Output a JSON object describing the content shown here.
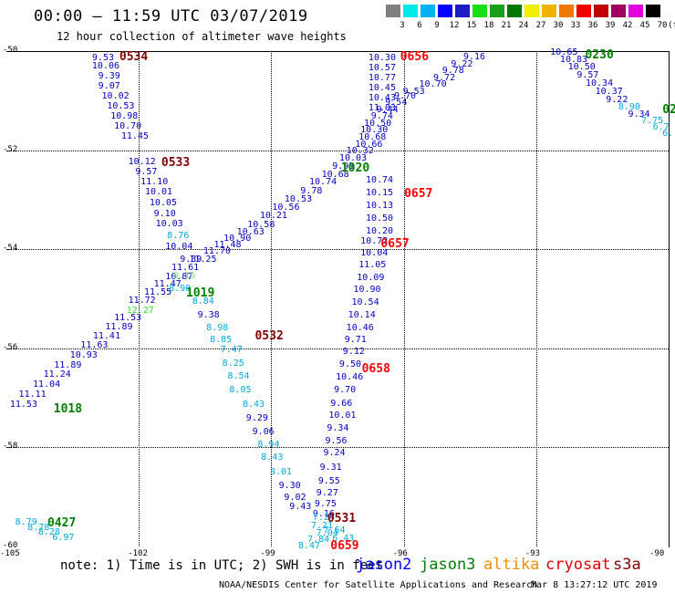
{
  "header": {
    "title": "00:00 – 11:59 UTC 03/07/2019",
    "subtitle": "12 hour collection of altimeter wave heights"
  },
  "legend": {
    "labels": [
      "3",
      "6",
      "9",
      "12",
      "15",
      "18",
      "21",
      "24",
      "27",
      "30",
      "33",
      "36",
      "39",
      "42",
      "45",
      "70"
    ],
    "unit_label": "(ft)",
    "colors": [
      "#808080",
      "#00e8e8",
      "#00b4f0",
      "#0000ff",
      "#1c1cc4",
      "#18e018",
      "#18a018",
      "#007800",
      "#f0f000",
      "#f0b400",
      "#f07800",
      "#f00000",
      "#c00000",
      "#a00060",
      "#e000e0",
      "#000000"
    ]
  },
  "axes": {
    "y_ticks": [
      "-50",
      "-52",
      "-54",
      "-56",
      "-58",
      "-60"
    ],
    "x_ticks": [
      "-105",
      "-102",
      "-99",
      "-96",
      "-93",
      "-90"
    ]
  },
  "footer": {
    "note": "note: 1) Time is in UTC; 2) SWH is in feet",
    "satellites": [
      {
        "name": "jason2",
        "color": "#0000ff"
      },
      {
        "name": "jason3",
        "color": "#008000"
      },
      {
        "name": "altika",
        "color": "#f09000"
      },
      {
        "name": "cryosat",
        "color": "#e00000"
      },
      {
        "name": "s3a",
        "color": "#800000"
      }
    ],
    "credit": "NOAA/NESDIS Center for Satellite Applications and Research",
    "timestamp": "Mar  8 13:27:12 UTC 2019"
  },
  "map_data": {
    "lon_range": [
      -105,
      -90
    ],
    "lat_range": [
      -60,
      -50
    ],
    "sat_colors": {
      "jason2": "#0000c0",
      "jason3": "#008000",
      "cryosat": "#ff0000",
      "s3a": "#800000"
    },
    "time_marks": [
      {
        "label": "0534",
        "sat": "s3a",
        "lon": -102.44,
        "lat": -50.11
      },
      {
        "label": "0533",
        "sat": "s3a",
        "lon": -101.49,
        "lat": -52.25
      },
      {
        "label": "0532",
        "sat": "s3a",
        "lon": -99.37,
        "lat": -55.74
      },
      {
        "label": "0531",
        "sat": "s3a",
        "lon": -97.73,
        "lat": -59.42
      },
      {
        "label": "0656",
        "sat": "cryosat",
        "lon": -96.08,
        "lat": -50.11
      },
      {
        "label": "0657",
        "sat": "cryosat",
        "lon": -95.99,
        "lat": -52.87
      },
      {
        "label": "0657",
        "sat": "cryosat",
        "lon": -96.52,
        "lat": -53.89
      },
      {
        "label": "0658",
        "sat": "cryosat",
        "lon": -96.95,
        "lat": -56.4
      },
      {
        "label": "0659",
        "sat": "cryosat",
        "lon": -97.66,
        "lat": -59.98
      },
      {
        "label": "1019",
        "sat": "jason3",
        "lon": -100.93,
        "lat": -54.88
      },
      {
        "label": "1020",
        "sat": "jason3",
        "lon": -97.42,
        "lat": -52.36
      },
      {
        "label": "1018",
        "sat": "jason3",
        "lon": -103.93,
        "lat": -57.21
      },
      {
        "label": "0427",
        "sat": "jason3",
        "lon": -104.07,
        "lat": -59.53
      },
      {
        "label": "0230",
        "sat": "jason3",
        "lon": -91.89,
        "lat": -50.07
      },
      {
        "label": "02",
        "sat": "jason3",
        "lon": -90.14,
        "lat": -51.17
      }
    ],
    "readings": [
      {
        "v": "9.53",
        "lon": -103.06,
        "lat": -50.15,
        "c": "#0000c0"
      },
      {
        "v": "10.06",
        "lon": -103.06,
        "lat": -50.32,
        "c": "#0000c0"
      },
      {
        "v": "9.39",
        "lon": -102.92,
        "lat": -50.52,
        "c": "#0000c0"
      },
      {
        "v": "9.07",
        "lon": -102.92,
        "lat": -50.72,
        "c": "#0000c0"
      },
      {
        "v": "10.02",
        "lon": -102.84,
        "lat": -50.93,
        "c": "#0000c0"
      },
      {
        "v": "10.53",
        "lon": -102.72,
        "lat": -51.13,
        "c": "#0000c0"
      },
      {
        "v": "10.98",
        "lon": -102.64,
        "lat": -51.33,
        "c": "#0000c0"
      },
      {
        "v": "10.70",
        "lon": -102.56,
        "lat": -51.52,
        "c": "#0000c0"
      },
      {
        "v": "11.45",
        "lon": -102.4,
        "lat": -51.73,
        "c": "#0000c0"
      },
      {
        "v": "10.12",
        "lon": -102.24,
        "lat": -52.25,
        "c": "#0000c0"
      },
      {
        "v": "9.57",
        "lon": -102.08,
        "lat": -52.45,
        "c": "#0000c0"
      },
      {
        "v": "11.10",
        "lon": -101.96,
        "lat": -52.66,
        "c": "#0000c0"
      },
      {
        "v": "10.01",
        "lon": -101.86,
        "lat": -52.86,
        "c": "#0000c0"
      },
      {
        "v": "10.05",
        "lon": -101.76,
        "lat": -53.08,
        "c": "#0000c0"
      },
      {
        "v": "9.10",
        "lon": -101.66,
        "lat": -53.29,
        "c": "#0000c0"
      },
      {
        "v": "10.03",
        "lon": -101.62,
        "lat": -53.49,
        "c": "#0000c0"
      },
      {
        "v": "8.76",
        "lon": -101.36,
        "lat": -53.73,
        "c": "#00a8e0"
      },
      {
        "v": "10.04",
        "lon": -101.4,
        "lat": -53.96,
        "c": "#0000c0"
      },
      {
        "v": "9.39",
        "lon": -101.07,
        "lat": -54.21,
        "c": "#0000c0"
      },
      {
        "v": "8.84",
        "lon": -100.79,
        "lat": -55.07,
        "c": "#00a8e0"
      },
      {
        "v": "9.38",
        "lon": -100.67,
        "lat": -55.34,
        "c": "#0000c0"
      },
      {
        "v": "8.98",
        "lon": -100.47,
        "lat": -55.59,
        "c": "#00a8e0"
      },
      {
        "v": "8.85",
        "lon": -100.39,
        "lat": -55.84,
        "c": "#00a8e0"
      },
      {
        "v": "7.47",
        "lon": -100.15,
        "lat": -56.04,
        "c": "#00a8e0"
      },
      {
        "v": "8.25",
        "lon": -100.11,
        "lat": -56.31,
        "c": "#00a8e0"
      },
      {
        "v": "8.54",
        "lon": -99.99,
        "lat": -56.58,
        "c": "#00a8e0"
      },
      {
        "v": "8.05",
        "lon": -99.95,
        "lat": -56.86,
        "c": "#00a8e0"
      },
      {
        "v": "8.43",
        "lon": -99.65,
        "lat": -57.14,
        "c": "#00a8e0"
      },
      {
        "v": "9.29",
        "lon": -99.57,
        "lat": -57.42,
        "c": "#0000c0"
      },
      {
        "v": "9.06",
        "lon": -99.43,
        "lat": -57.69,
        "c": "#0000c0"
      },
      {
        "v": "8.94",
        "lon": -99.31,
        "lat": -57.95,
        "c": "#00a8e0"
      },
      {
        "v": "8.43",
        "lon": -99.23,
        "lat": -58.21,
        "c": "#00a8e0"
      },
      {
        "v": "8.01",
        "lon": -99.03,
        "lat": -58.5,
        "c": "#00a8e0"
      },
      {
        "v": "9.30",
        "lon": -98.83,
        "lat": -58.79,
        "c": "#0000c0"
      },
      {
        "v": "9.02",
        "lon": -98.71,
        "lat": -59.02,
        "c": "#0000c0"
      },
      {
        "v": "9.43",
        "lon": -98.59,
        "lat": -59.21,
        "c": "#0000c0"
      },
      {
        "v": "10.30",
        "lon": -96.8,
        "lat": -50.15,
        "c": "#0000c0"
      },
      {
        "v": "10.57",
        "lon": -96.8,
        "lat": -50.35,
        "c": "#0000c0"
      },
      {
        "v": "10.77",
        "lon": -96.8,
        "lat": -50.55,
        "c": "#0000c0"
      },
      {
        "v": "10.45",
        "lon": -96.8,
        "lat": -50.75,
        "c": "#0000c0"
      },
      {
        "v": "10.43",
        "lon": -96.8,
        "lat": -50.96,
        "c": "#0000c0"
      },
      {
        "v": "11.03",
        "lon": -96.8,
        "lat": -51.16,
        "c": "#0000c0"
      },
      {
        "v": "10.74",
        "lon": -96.86,
        "lat": -52.61,
        "c": "#0000c0"
      },
      {
        "v": "10.15",
        "lon": -96.86,
        "lat": -52.87,
        "c": "#0000c0"
      },
      {
        "v": "10.13",
        "lon": -96.86,
        "lat": -53.13,
        "c": "#0000c0"
      },
      {
        "v": "10.50",
        "lon": -96.86,
        "lat": -53.38,
        "c": "#0000c0"
      },
      {
        "v": "10.20",
        "lon": -96.86,
        "lat": -53.64,
        "c": "#0000c0"
      },
      {
        "v": "10.72",
        "lon": -96.98,
        "lat": -53.84,
        "c": "#0000c0"
      },
      {
        "v": "10.04",
        "lon": -96.98,
        "lat": -54.08,
        "c": "#0000c0"
      },
      {
        "v": "11.05",
        "lon": -97.02,
        "lat": -54.33,
        "c": "#0000c0"
      },
      {
        "v": "10.09",
        "lon": -97.06,
        "lat": -54.58,
        "c": "#0000c0"
      },
      {
        "v": "10.90",
        "lon": -97.14,
        "lat": -54.83,
        "c": "#0000c0"
      },
      {
        "v": "10.54",
        "lon": -97.18,
        "lat": -55.09,
        "c": "#0000c0"
      },
      {
        "v": "10.14",
        "lon": -97.26,
        "lat": -55.34,
        "c": "#0000c0"
      },
      {
        "v": "10.46",
        "lon": -97.3,
        "lat": -55.59,
        "c": "#0000c0"
      },
      {
        "v": "9.71",
        "lon": -97.34,
        "lat": -55.84,
        "c": "#0000c0"
      },
      {
        "v": "9.12",
        "lon": -97.38,
        "lat": -56.08,
        "c": "#0000c0"
      },
      {
        "v": "9.50",
        "lon": -97.46,
        "lat": -56.34,
        "c": "#0000c0"
      },
      {
        "v": "10.46",
        "lon": -97.54,
        "lat": -56.6,
        "c": "#0000c0"
      },
      {
        "v": "9.70",
        "lon": -97.58,
        "lat": -56.86,
        "c": "#0000c0"
      },
      {
        "v": "9.66",
        "lon": -97.66,
        "lat": -57.12,
        "c": "#0000c0"
      },
      {
        "v": "10.01",
        "lon": -97.7,
        "lat": -57.37,
        "c": "#0000c0"
      },
      {
        "v": "9.34",
        "lon": -97.74,
        "lat": -57.62,
        "c": "#0000c0"
      },
      {
        "v": "9.56",
        "lon": -97.78,
        "lat": -57.88,
        "c": "#0000c0"
      },
      {
        "v": "9.24",
        "lon": -97.82,
        "lat": -58.12,
        "c": "#0000c0"
      },
      {
        "v": "9.31",
        "lon": -97.9,
        "lat": -58.42,
        "c": "#0000c0"
      },
      {
        "v": "9.55",
        "lon": -97.94,
        "lat": -58.69,
        "c": "#0000c0"
      },
      {
        "v": "9.27",
        "lon": -97.98,
        "lat": -58.93,
        "c": "#0000c0"
      },
      {
        "v": "9.75",
        "lon": -98.02,
        "lat": -59.16,
        "c": "#0000c0"
      },
      {
        "v": "9.16",
        "lon": -98.06,
        "lat": -59.36,
        "c": "#0000c0"
      },
      {
        "v": "7.64",
        "lon": -97.82,
        "lat": -59.68,
        "c": "#00a8e0"
      },
      {
        "v": "6.43",
        "lon": -97.62,
        "lat": -59.86,
        "c": "#00a8e0"
      },
      {
        "v": "7.04",
        "lon": -97.98,
        "lat": -59.74,
        "c": "#00a8e0"
      },
      {
        "v": "7.21",
        "lon": -98.1,
        "lat": -59.6,
        "c": "#00a8e0"
      },
      {
        "v": "7.24",
        "lon": -98.06,
        "lat": -59.43,
        "c": "#00a8e0"
      },
      {
        "v": "7.84",
        "lon": -98.18,
        "lat": -59.88,
        "c": "#00a8e0"
      },
      {
        "v": "8.47",
        "lon": -98.39,
        "lat": -60.0,
        "c": "#00a8e0"
      },
      {
        "v": "11.53",
        "lon": -104.92,
        "lat": -57.14,
        "c": "#0000c0"
      },
      {
        "v": "11.11",
        "lon": -104.72,
        "lat": -56.94,
        "c": "#0000c0"
      },
      {
        "v": "11.04",
        "lon": -104.4,
        "lat": -56.74,
        "c": "#0000c0"
      },
      {
        "v": "11.24",
        "lon": -104.16,
        "lat": -56.54,
        "c": "#0000c0"
      },
      {
        "v": "11.89",
        "lon": -103.92,
        "lat": -56.35,
        "c": "#0000c0"
      },
      {
        "v": "10.93",
        "lon": -103.56,
        "lat": -56.15,
        "c": "#0000c0"
      },
      {
        "v": "11.63",
        "lon": -103.32,
        "lat": -55.95,
        "c": "#0000c0"
      },
      {
        "v": "11.41",
        "lon": -103.04,
        "lat": -55.76,
        "c": "#0000c0"
      },
      {
        "v": "11.89",
        "lon": -102.76,
        "lat": -55.58,
        "c": "#0000c0"
      },
      {
        "v": "11.53",
        "lon": -102.56,
        "lat": -55.4,
        "c": "#0000c0"
      },
      {
        "v": "12.27",
        "lon": -102.28,
        "lat": -55.24,
        "c": "#30e030"
      },
      {
        "v": "11.72",
        "lon": -102.24,
        "lat": -55.05,
        "c": "#0000c0"
      },
      {
        "v": "11.55",
        "lon": -101.88,
        "lat": -54.88,
        "c": "#0000c0"
      },
      {
        "v": "11.47",
        "lon": -101.66,
        "lat": -54.72,
        "c": "#0000c0"
      },
      {
        "v": "10.87",
        "lon": -101.4,
        "lat": -54.56,
        "c": "#0000c0"
      },
      {
        "v": "11.61",
        "lon": -101.26,
        "lat": -54.39,
        "c": "#0000c0"
      },
      {
        "v": "11.25",
        "lon": -100.86,
        "lat": -54.22,
        "c": "#0000c0"
      },
      {
        "v": "11.70",
        "lon": -100.54,
        "lat": -54.06,
        "c": "#0000c0"
      },
      {
        "v": "11.48",
        "lon": -100.3,
        "lat": -53.93,
        "c": "#0000c0"
      },
      {
        "v": "10.90",
        "lon": -100.08,
        "lat": -53.8,
        "c": "#0000c0"
      },
      {
        "v": "10.63",
        "lon": -99.78,
        "lat": -53.66,
        "c": "#0000c0"
      },
      {
        "v": "10.58",
        "lon": -99.54,
        "lat": -53.51,
        "c": "#0000c0"
      },
      {
        "v": "10.21",
        "lon": -99.26,
        "lat": -53.34,
        "c": "#0000c0"
      },
      {
        "v": "10.56",
        "lon": -98.98,
        "lat": -53.17,
        "c": "#0000c0"
      },
      {
        "v": "10.53",
        "lon": -98.7,
        "lat": -53.0,
        "c": "#0000c0"
      },
      {
        "v": "9.78",
        "lon": -98.34,
        "lat": -52.83,
        "c": "#0000c0"
      },
      {
        "v": "10.74",
        "lon": -98.14,
        "lat": -52.66,
        "c": "#0000c0"
      },
      {
        "v": "10.68",
        "lon": -97.86,
        "lat": -52.5,
        "c": "#0000c0"
      },
      {
        "v": "9.93",
        "lon": -97.62,
        "lat": -52.33,
        "c": "#0000c0"
      },
      {
        "v": "10.03",
        "lon": -97.46,
        "lat": -52.18,
        "c": "#0000c0"
      },
      {
        "v": "10.32",
        "lon": -97.3,
        "lat": -52.03,
        "c": "#0000c0"
      },
      {
        "v": "10.66",
        "lon": -97.1,
        "lat": -51.89,
        "c": "#0000c0"
      },
      {
        "v": "10.68",
        "lon": -97.02,
        "lat": -51.75,
        "c": "#0000c0"
      },
      {
        "v": "10.30",
        "lon": -96.98,
        "lat": -51.61,
        "c": "#0000c0"
      },
      {
        "v": "10.50",
        "lon": -96.9,
        "lat": -51.47,
        "c": "#0000c0"
      },
      {
        "v": "9.74",
        "lon": -96.74,
        "lat": -51.33,
        "c": "#0000c0"
      },
      {
        "v": "9.44",
        "lon": -96.62,
        "lat": -51.19,
        "c": "#0000c0"
      },
      {
        "v": "9.54",
        "lon": -96.42,
        "lat": -51.05,
        "c": "#0000c0"
      },
      {
        "v": "9.70",
        "lon": -96.22,
        "lat": -50.92,
        "c": "#0000c0"
      },
      {
        "v": "9.53",
        "lon": -96.02,
        "lat": -50.82,
        "c": "#0000c0"
      },
      {
        "v": "10.70",
        "lon": -95.65,
        "lat": -50.68,
        "c": "#0000c0"
      },
      {
        "v": "9.72",
        "lon": -95.33,
        "lat": -50.55,
        "c": "#0000c0"
      },
      {
        "v": "9.78",
        "lon": -95.13,
        "lat": -50.4,
        "c": "#0000c0"
      },
      {
        "v": "9.22",
        "lon": -94.93,
        "lat": -50.27,
        "c": "#0000c0"
      },
      {
        "v": "9.16",
        "lon": -94.65,
        "lat": -50.12,
        "c": "#0000c0"
      },
      {
        "v": "9.15",
        "lon": -101.22,
        "lat": -54.55,
        "c": "#80e080"
      },
      {
        "v": "8.90",
        "lon": -101.32,
        "lat": -54.81,
        "c": "#00a8e0"
      },
      {
        "v": "10.65",
        "lon": -92.68,
        "lat": -50.04,
        "c": "#0000c0"
      },
      {
        "v": "10.83",
        "lon": -92.46,
        "lat": -50.19,
        "c": "#0000c0"
      },
      {
        "v": "10.50",
        "lon": -92.28,
        "lat": -50.34,
        "c": "#0000c0"
      },
      {
        "v": "9.57",
        "lon": -92.08,
        "lat": -50.49,
        "c": "#0000c0"
      },
      {
        "v": "10.34",
        "lon": -91.88,
        "lat": -50.66,
        "c": "#0000c0"
      },
      {
        "v": "10.37",
        "lon": -91.66,
        "lat": -50.82,
        "c": "#0000c0"
      },
      {
        "v": "9.22",
        "lon": -91.42,
        "lat": -50.99,
        "c": "#0000c0"
      },
      {
        "v": "8.90",
        "lon": -91.14,
        "lat": -51.14,
        "c": "#00a8e0"
      },
      {
        "v": "9.34",
        "lon": -90.92,
        "lat": -51.29,
        "c": "#0000c0"
      },
      {
        "v": "7.75",
        "lon": -90.62,
        "lat": -51.42,
        "c": "#00a8e0"
      },
      {
        "v": "6.7",
        "lon": -90.36,
        "lat": -51.55,
        "c": "#00a8e0"
      },
      {
        "v": "6.",
        "lon": -90.14,
        "lat": -51.68,
        "c": "#00a8e0"
      },
      {
        "v": "8.79",
        "lon": -104.8,
        "lat": -59.53,
        "c": "#00a8e0"
      },
      {
        "v": "8.78",
        "lon": -104.52,
        "lat": -59.63,
        "c": "#00a8e0"
      },
      {
        "v": "8.28",
        "lon": -104.28,
        "lat": -59.73,
        "c": "#00a8e0"
      },
      {
        "v": "6.97",
        "lon": -103.96,
        "lat": -59.83,
        "c": "#00a8e0"
      }
    ]
  }
}
